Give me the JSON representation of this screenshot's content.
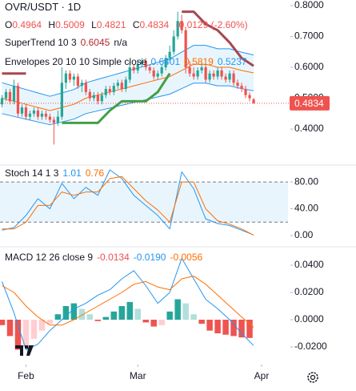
{
  "chart_data": [
    {
      "type": "candlestick",
      "title": "OVR/USDT · 1D",
      "ohlc_labels": [
        "O",
        "H",
        "L",
        "C"
      ],
      "ohlc_values": [
        0.4964,
        0.5009,
        0.4821,
        0.4834
      ],
      "change": {
        "value": -0.0129,
        "label": "-0.0129 (-2.60%)"
      },
      "up_color": "#26a69a",
      "down_color": "#ef5350",
      "x": [
        0,
        1,
        2,
        3,
        4,
        5,
        6,
        7,
        8,
        9,
        10,
        11,
        12,
        13,
        14,
        15,
        16,
        17,
        18,
        19,
        20,
        21,
        22,
        23,
        24,
        25,
        26,
        27,
        28,
        29,
        30,
        31,
        32,
        33,
        34,
        35,
        36,
        37,
        38,
        39,
        40,
        41,
        42,
        43,
        44,
        45,
        46,
        47,
        48,
        49,
        50,
        51,
        52,
        53,
        54,
        55,
        56,
        57,
        58,
        59,
        60,
        61,
        62,
        63
      ],
      "open": [
        0.48,
        0.5,
        0.52,
        0.49,
        0.54,
        0.45,
        0.47,
        0.44,
        0.45,
        0.46,
        0.44,
        0.45,
        0.44,
        0.43,
        0.42,
        0.44,
        0.55,
        0.58,
        0.56,
        0.57,
        0.54,
        0.55,
        0.52,
        0.5,
        0.51,
        0.49,
        0.51,
        0.53,
        0.52,
        0.54,
        0.55,
        0.53,
        0.56,
        0.6,
        0.59,
        0.61,
        0.62,
        0.6,
        0.59,
        0.57,
        0.58,
        0.6,
        0.63,
        0.65,
        0.7,
        0.75,
        0.72,
        0.6,
        0.58,
        0.57,
        0.59,
        0.6,
        0.56,
        0.58,
        0.57,
        0.59,
        0.57,
        0.56,
        0.58,
        0.55,
        0.54,
        0.53,
        0.51,
        0.4964
      ],
      "high": [
        0.51,
        0.53,
        0.53,
        0.56,
        0.55,
        0.48,
        0.48,
        0.46,
        0.47,
        0.47,
        0.46,
        0.46,
        0.45,
        0.44,
        0.46,
        0.6,
        0.59,
        0.59,
        0.58,
        0.58,
        0.56,
        0.56,
        0.53,
        0.52,
        0.52,
        0.52,
        0.54,
        0.54,
        0.55,
        0.56,
        0.56,
        0.57,
        0.62,
        0.61,
        0.62,
        0.63,
        0.63,
        0.61,
        0.6,
        0.59,
        0.61,
        0.64,
        0.67,
        0.72,
        0.78,
        0.77,
        0.73,
        0.62,
        0.6,
        0.6,
        0.61,
        0.61,
        0.59,
        0.59,
        0.6,
        0.6,
        0.58,
        0.59,
        0.59,
        0.56,
        0.55,
        0.54,
        0.52,
        0.5009
      ],
      "low": [
        0.47,
        0.49,
        0.48,
        0.48,
        0.44,
        0.44,
        0.43,
        0.43,
        0.44,
        0.43,
        0.43,
        0.43,
        0.42,
        0.35,
        0.41,
        0.43,
        0.53,
        0.55,
        0.54,
        0.53,
        0.52,
        0.51,
        0.49,
        0.49,
        0.48,
        0.48,
        0.5,
        0.51,
        0.51,
        0.53,
        0.52,
        0.52,
        0.55,
        0.58,
        0.58,
        0.6,
        0.59,
        0.58,
        0.56,
        0.56,
        0.57,
        0.59,
        0.62,
        0.64,
        0.69,
        0.71,
        0.58,
        0.57,
        0.56,
        0.56,
        0.58,
        0.55,
        0.55,
        0.56,
        0.56,
        0.56,
        0.55,
        0.55,
        0.54,
        0.53,
        0.52,
        0.5,
        0.49,
        0.4821
      ],
      "close": [
        0.5,
        0.52,
        0.49,
        0.54,
        0.45,
        0.47,
        0.44,
        0.45,
        0.46,
        0.44,
        0.45,
        0.44,
        0.43,
        0.42,
        0.44,
        0.55,
        0.58,
        0.56,
        0.57,
        0.54,
        0.55,
        0.52,
        0.5,
        0.51,
        0.49,
        0.51,
        0.53,
        0.52,
        0.54,
        0.55,
        0.53,
        0.56,
        0.6,
        0.59,
        0.61,
        0.62,
        0.6,
        0.59,
        0.57,
        0.58,
        0.6,
        0.63,
        0.65,
        0.7,
        0.75,
        0.72,
        0.6,
        0.58,
        0.57,
        0.59,
        0.6,
        0.56,
        0.58,
        0.57,
        0.59,
        0.57,
        0.56,
        0.58,
        0.55,
        0.54,
        0.53,
        0.51,
        0.5,
        0.4834
      ],
      "last_price": 0.4834,
      "xlim": [
        -0.5,
        66.6
      ],
      "ylim": [
        0.286,
        0.818
      ],
      "yticks": [
        {
          "value": 0.8,
          "label": "0.8000"
        },
        {
          "value": 0.7,
          "label": "0.7000"
        },
        {
          "value": 0.6,
          "label": "0.6000"
        },
        {
          "value": 0.5,
          "label": "0.5000"
        },
        {
          "value": 0.4,
          "label": "0.4000"
        }
      ],
      "supertrend": {
        "name": "SuperTrend 10 3",
        "value": 0.6045,
        "value_color": "#b22833",
        "na": "n/a",
        "x": [
          0,
          3,
          6,
          9,
          12,
          15,
          18,
          21,
          24,
          27,
          30,
          33,
          36,
          39,
          42,
          45,
          48,
          51,
          54,
          57,
          60,
          63
        ],
        "up": {
          "color": "#43a047",
          "values": [
            null,
            null,
            null,
            null,
            null,
            0.42,
            0.42,
            0.42,
            0.42,
            0.46,
            0.49,
            0.49,
            0.49,
            0.52,
            0.58,
            null,
            null,
            null,
            null,
            null,
            null,
            null
          ]
        },
        "down": {
          "color": "#a5484f",
          "values": [
            0.58,
            0.58,
            0.58,
            null,
            null,
            null,
            null,
            null,
            null,
            null,
            null,
            null,
            null,
            null,
            null,
            0.78,
            0.78,
            0.74,
            0.72,
            0.68,
            0.63,
            0.6045
          ]
        }
      },
      "envelopes": {
        "name": "Envelopes 20 10 10 Simple close",
        "fill": "#e3f2fd",
        "x": [
          0,
          3,
          6,
          9,
          12,
          15,
          18,
          21,
          24,
          27,
          30,
          33,
          36,
          39,
          42,
          45,
          48,
          51,
          54,
          57,
          60,
          63
        ],
        "lines": [
          {
            "color": "#2196f3",
            "values": [
              0.55,
              0.539,
              0.528,
              0.517,
              0.506,
              0.517,
              0.528,
              0.55,
              0.561,
              0.572,
              0.583,
              0.594,
              0.605,
              0.616,
              0.627,
              0.649,
              0.671,
              0.671,
              0.66,
              0.66,
              0.649,
              0.6401
            ]
          },
          {
            "color": "#ff6d00",
            "values": [
              0.5,
              0.49,
              0.48,
              0.47,
              0.46,
              0.47,
              0.48,
              0.5,
              0.51,
              0.52,
              0.53,
              0.54,
              0.55,
              0.56,
              0.57,
              0.59,
              0.61,
              0.61,
              0.6,
              0.6,
              0.59,
              0.5819
            ]
          },
          {
            "color": "#2196f3",
            "values": [
              0.45,
              0.441,
              0.432,
              0.423,
              0.414,
              0.423,
              0.432,
              0.45,
              0.459,
              0.468,
              0.477,
              0.486,
              0.495,
              0.504,
              0.513,
              0.531,
              0.549,
              0.549,
              0.54,
              0.54,
              0.531,
              0.5237
            ]
          }
        ],
        "last_values": [
          0.6401,
          0.5819,
          0.5237
        ]
      }
    },
    {
      "type": "line",
      "title": "Stoch 14 1 3",
      "x": [
        0,
        3,
        6,
        9,
        12,
        15,
        18,
        21,
        24,
        27,
        30,
        33,
        36,
        39,
        42,
        45,
        48,
        51,
        54,
        57,
        60,
        63
      ],
      "series": [
        {
          "color": "#2196f3",
          "values": [
            8,
            12,
            30,
            55,
            40,
            78,
            55,
            72,
            60,
            98,
            85,
            60,
            45,
            30,
            10,
            95,
            70,
            25,
            18,
            15,
            8,
            1.01
          ]
        },
        {
          "color": "#ff6d00",
          "values": [
            10,
            10,
            20,
            45,
            45,
            65,
            60,
            65,
            65,
            85,
            88,
            70,
            52,
            38,
            20,
            80,
            80,
            40,
            22,
            17,
            10,
            0.76
          ]
        }
      ],
      "last_values": [
        1.01,
        0.76
      ],
      "band": [
        20,
        80
      ],
      "band_color": "#e3f2fd",
      "xlim": [
        -0.5,
        66.6
      ],
      "ylim": [
        -15.5,
        104
      ],
      "yticks": [
        {
          "value": 80,
          "label": "80.00"
        },
        {
          "value": 40,
          "label": "40.00"
        },
        {
          "value": 0,
          "label": "0.00"
        }
      ]
    },
    {
      "type": "macd",
      "title": "MACD 12 26 close 9",
      "last_values": [
        -0.0134,
        {
          "value": -0.019,
          "label": "-0.0190"
        },
        -0.0056
      ],
      "histogram": {
        "x": [
          0,
          2,
          4,
          6,
          8,
          10,
          12,
          14,
          16,
          18,
          20,
          22,
          24,
          26,
          28,
          30,
          32,
          34,
          36,
          38,
          40,
          42,
          44,
          46,
          48,
          50,
          52,
          54,
          56,
          58,
          60,
          62
        ],
        "values": [
          -0.004,
          -0.012,
          -0.022,
          -0.02,
          -0.014,
          -0.008,
          -0.003,
          0.004,
          0.01,
          0.012,
          0.008,
          0.004,
          -0.001,
          0.002,
          0.006,
          0.01,
          0.013,
          0.008,
          -0.002,
          -0.005,
          -0.004,
          0.006,
          0.015,
          0.012,
          0.004,
          -0.003,
          -0.008,
          -0.01,
          -0.011,
          -0.012,
          -0.013,
          -0.0134
        ],
        "colors": {
          "rising_positive": "#26a69a",
          "falling_positive": "#b2dfdb",
          "falling_negative": "#ef5350",
          "rising_negative": "#ffcdd2"
        }
      },
      "x": [
        0,
        3,
        6,
        9,
        12,
        15,
        18,
        21,
        24,
        27,
        30,
        33,
        36,
        39,
        42,
        45,
        48,
        51,
        54,
        57,
        60,
        63
      ],
      "series": [
        {
          "color": "#2196f3",
          "values": [
            0.028,
            0.005,
            -0.022,
            -0.018,
            -0.008,
            0.0,
            0.008,
            0.012,
            0.018,
            0.022,
            0.03,
            0.036,
            0.025,
            0.012,
            0.02,
            0.045,
            0.03,
            0.015,
            0.008,
            0.0,
            -0.01,
            -0.019
          ]
        },
        {
          "color": "#ff6d00",
          "values": [
            0.025,
            0.02,
            0.01,
            0.002,
            -0.004,
            -0.004,
            0.0,
            0.005,
            0.01,
            0.015,
            0.02,
            0.026,
            0.028,
            0.024,
            0.022,
            0.03,
            0.032,
            0.026,
            0.018,
            0.01,
            0.002,
            -0.0056
          ]
        }
      ],
      "xlim": [
        -0.5,
        66.6
      ],
      "ylim": [
        -0.0329,
        0.0529
      ],
      "yticks": [
        {
          "value": 0.04,
          "label": "0.0400"
        },
        {
          "value": 0.02,
          "label": "0.0200"
        },
        {
          "value": 0,
          "label": "0.0000"
        },
        {
          "value": -0.02,
          "label": "-0.0200"
        }
      ],
      "xticks": [
        {
          "value": 6,
          "label": "Feb"
        },
        {
          "value": 34,
          "label": "Mar"
        },
        {
          "value": 65,
          "label": "Apr"
        }
      ]
    }
  ]
}
